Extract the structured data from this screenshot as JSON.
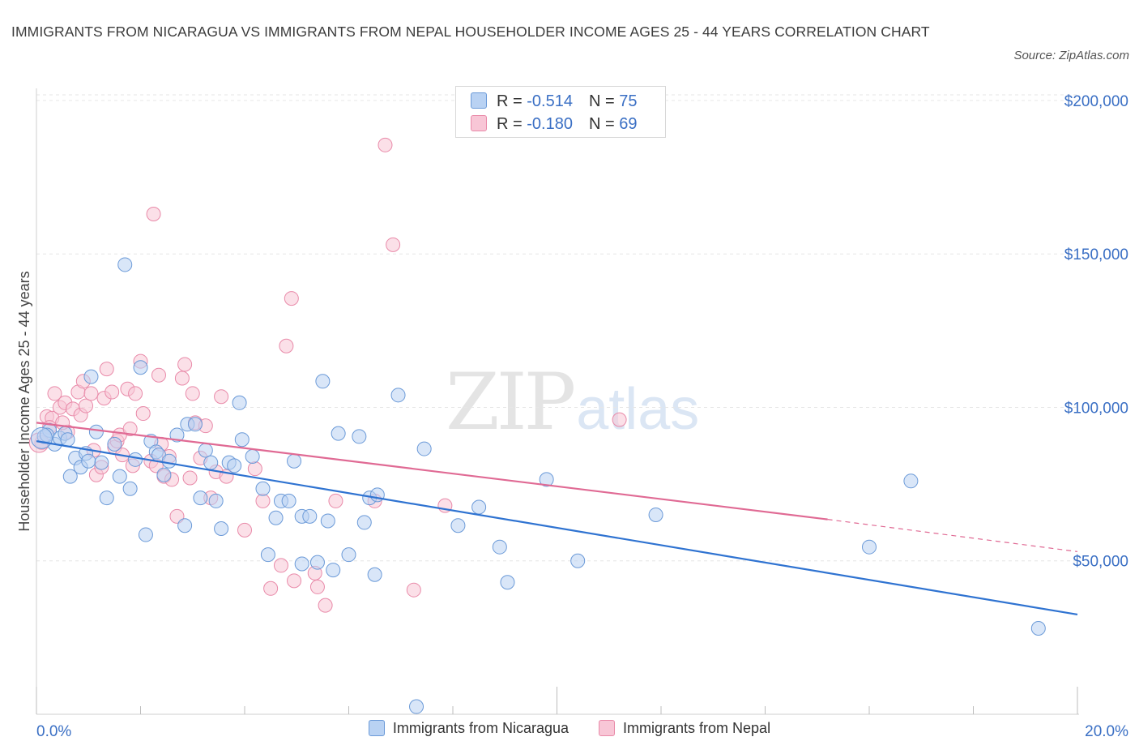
{
  "title": "IMMIGRANTS FROM NICARAGUA VS IMMIGRANTS FROM NEPAL HOUSEHOLDER INCOME AGES 25 - 44 YEARS CORRELATION CHART",
  "source": "Source: ZipAtlas.com",
  "watermark": {
    "zip": "ZIP",
    "atlas": "atlas"
  },
  "legend_top": {
    "rows": [
      {
        "r_label": "R = ",
        "r_value": "-0.514",
        "n_label": "N = ",
        "n_value": "75"
      },
      {
        "r_label": "R = ",
        "r_value": "-0.180",
        "n_label": "N = ",
        "n_value": "69"
      }
    ]
  },
  "colors": {
    "nicaragua_fill": "#b9d2f3",
    "nicaragua_stroke": "#6b9ad8",
    "nicaragua_line": "#2f73d1",
    "nepal_fill": "#f8c6d6",
    "nepal_stroke": "#e98aa9",
    "nepal_line": "#e06a94",
    "axis_label": "#3a6fc4",
    "grid": "#e6e6e6"
  },
  "chart_data": {
    "type": "scatter",
    "title": "IMMIGRANTS FROM NICARAGUA VS IMMIGRANTS FROM NEPAL HOUSEHOLDER INCOME AGES 25 - 44 YEARS CORRELATION CHART",
    "xlabel": "",
    "ylabel": "Householder Income Ages 25 - 44 years",
    "xlim": [
      0,
      20
    ],
    "ylim": [
      0,
      205000
    ],
    "x_tick_labels": [
      "0.0%",
      "20.0%"
    ],
    "y_ticks": [
      {
        "value": 50000,
        "label": "$50,000"
      },
      {
        "value": 100000,
        "label": "$100,000"
      },
      {
        "value": 150000,
        "label": "$150,000"
      },
      {
        "value": 200000,
        "label": "$200,000"
      }
    ],
    "grid": true,
    "legend_position": "bottom",
    "series": [
      {
        "name": "Immigrants from Nicaragua",
        "trend": {
          "x0": 0,
          "y0": 89000,
          "x1": 20,
          "y1": 32500
        },
        "points": [
          [
            0.15,
            90500
          ],
          [
            0.25,
            92500
          ],
          [
            0.35,
            88000
          ],
          [
            0.45,
            90000
          ],
          [
            0.55,
            91500
          ],
          [
            0.65,
            77500
          ],
          [
            0.75,
            83500
          ],
          [
            0.85,
            80500
          ],
          [
            0.95,
            85000
          ],
          [
            1.05,
            110000
          ],
          [
            1.15,
            92000
          ],
          [
            1.25,
            82000
          ],
          [
            1.35,
            70500
          ],
          [
            1.5,
            88000
          ],
          [
            1.6,
            77500
          ],
          [
            1.7,
            146500
          ],
          [
            1.8,
            73500
          ],
          [
            1.9,
            83000
          ],
          [
            2.0,
            113000
          ],
          [
            2.1,
            58500
          ],
          [
            2.2,
            89000
          ],
          [
            2.3,
            85500
          ],
          [
            2.35,
            84500
          ],
          [
            2.45,
            78000
          ],
          [
            2.55,
            82500
          ],
          [
            2.7,
            91000
          ],
          [
            2.85,
            61500
          ],
          [
            2.9,
            94500
          ],
          [
            3.05,
            94500
          ],
          [
            3.15,
            70500
          ],
          [
            3.25,
            86000
          ],
          [
            3.35,
            82000
          ],
          [
            3.45,
            69500
          ],
          [
            3.55,
            60500
          ],
          [
            3.7,
            82000
          ],
          [
            3.8,
            81000
          ],
          [
            3.9,
            101500
          ],
          [
            3.95,
            89500
          ],
          [
            4.15,
            84000
          ],
          [
            4.35,
            73500
          ],
          [
            4.45,
            52000
          ],
          [
            4.6,
            64000
          ],
          [
            4.7,
            69500
          ],
          [
            4.85,
            69500
          ],
          [
            4.95,
            82500
          ],
          [
            5.1,
            64500
          ],
          [
            5.1,
            49000
          ],
          [
            5.25,
            64500
          ],
          [
            5.4,
            49500
          ],
          [
            5.5,
            108500
          ],
          [
            5.6,
            63000
          ],
          [
            5.7,
            47000
          ],
          [
            5.8,
            91500
          ],
          [
            6.0,
            52000
          ],
          [
            6.2,
            90500
          ],
          [
            6.3,
            62500
          ],
          [
            6.4,
            70500
          ],
          [
            6.5,
            45500
          ],
          [
            6.55,
            71500
          ],
          [
            6.95,
            104000
          ],
          [
            7.3,
            2500
          ],
          [
            7.45,
            86500
          ],
          [
            8.1,
            61500
          ],
          [
            8.5,
            67500
          ],
          [
            8.9,
            54500
          ],
          [
            9.05,
            43000
          ],
          [
            9.8,
            76500
          ],
          [
            10.4,
            50000
          ],
          [
            11.9,
            65000
          ],
          [
            16.0,
            54500
          ],
          [
            16.8,
            76000
          ],
          [
            19.25,
            28000
          ],
          [
            0.2,
            91000
          ],
          [
            0.6,
            89500
          ],
          [
            1.0,
            82500
          ]
        ]
      },
      {
        "name": "Immigrants from Nepal",
        "trend": {
          "x0": 0,
          "y0": 95000,
          "x1": 15.2,
          "y1": 63500,
          "dash_x1": 20,
          "dash_y1": 53000
        },
        "points": [
          [
            0.1,
            88500
          ],
          [
            0.2,
            97000
          ],
          [
            0.3,
            96500
          ],
          [
            0.35,
            104500
          ],
          [
            0.45,
            100000
          ],
          [
            0.55,
            101500
          ],
          [
            0.6,
            92000
          ],
          [
            0.7,
            99500
          ],
          [
            0.8,
            105000
          ],
          [
            0.85,
            97500
          ],
          [
            0.9,
            108500
          ],
          [
            0.95,
            100500
          ],
          [
            1.05,
            104500
          ],
          [
            1.1,
            86000
          ],
          [
            1.15,
            78000
          ],
          [
            1.25,
            80500
          ],
          [
            1.3,
            103000
          ],
          [
            1.35,
            112500
          ],
          [
            1.45,
            105000
          ],
          [
            1.5,
            87000
          ],
          [
            1.55,
            89000
          ],
          [
            1.6,
            91000
          ],
          [
            1.65,
            84500
          ],
          [
            1.75,
            106000
          ],
          [
            1.8,
            93000
          ],
          [
            1.85,
            81000
          ],
          [
            1.9,
            104500
          ],
          [
            2.0,
            115000
          ],
          [
            2.05,
            98000
          ],
          [
            2.2,
            82500
          ],
          [
            2.25,
            163000
          ],
          [
            2.3,
            81000
          ],
          [
            2.35,
            110500
          ],
          [
            2.4,
            88000
          ],
          [
            2.45,
            77500
          ],
          [
            2.55,
            84000
          ],
          [
            2.6,
            76500
          ],
          [
            2.7,
            64500
          ],
          [
            2.8,
            109500
          ],
          [
            2.85,
            114000
          ],
          [
            2.95,
            77000
          ],
          [
            3.0,
            104500
          ],
          [
            3.05,
            95000
          ],
          [
            3.15,
            83500
          ],
          [
            3.25,
            94000
          ],
          [
            3.35,
            70500
          ],
          [
            3.45,
            79000
          ],
          [
            3.55,
            103500
          ],
          [
            3.65,
            77500
          ],
          [
            4.0,
            60000
          ],
          [
            4.2,
            80000
          ],
          [
            4.35,
            69500
          ],
          [
            4.5,
            41000
          ],
          [
            4.7,
            48500
          ],
          [
            4.8,
            120000
          ],
          [
            4.9,
            135500
          ],
          [
            4.95,
            43500
          ],
          [
            5.35,
            46000
          ],
          [
            5.4,
            41500
          ],
          [
            5.55,
            35500
          ],
          [
            5.75,
            69500
          ],
          [
            6.5,
            69500
          ],
          [
            6.7,
            185500
          ],
          [
            6.85,
            153000
          ],
          [
            7.25,
            40500
          ],
          [
            7.85,
            68000
          ],
          [
            11.2,
            96000
          ],
          [
            0.25,
            93500
          ],
          [
            0.5,
            95000
          ]
        ]
      }
    ]
  }
}
